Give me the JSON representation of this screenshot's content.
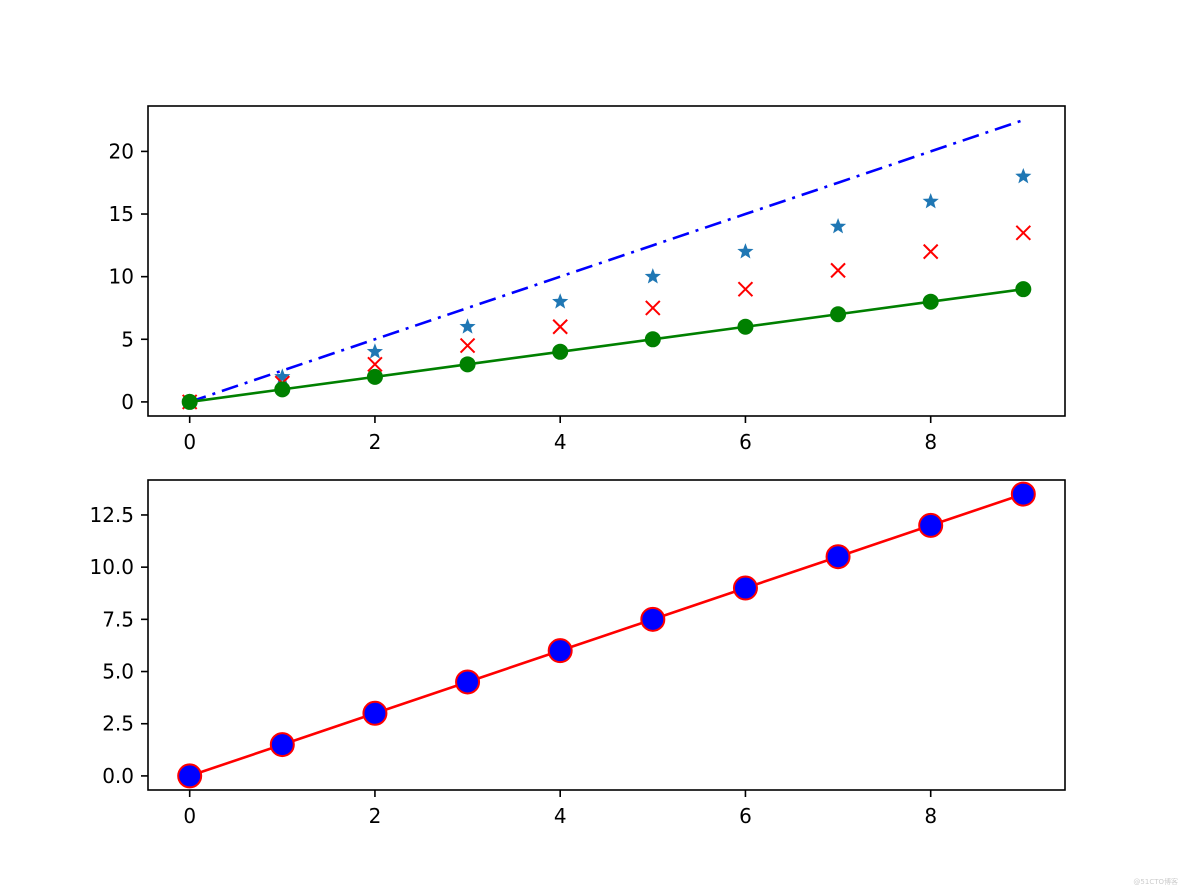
{
  "figure": {
    "background": "#ffffff",
    "watermark": "@51CTO博客"
  },
  "chart_data": [
    {
      "type": "line",
      "title": "",
      "xlabel": "",
      "ylabel": "",
      "xlim": [
        -0.45,
        9.45
      ],
      "ylim": [
        -1.125,
        23.625
      ],
      "grid": false,
      "x": [
        0,
        1,
        2,
        3,
        4,
        5,
        6,
        7,
        8,
        9
      ],
      "xticks": [
        0,
        2,
        4,
        6,
        8
      ],
      "xtick_labels": [
        "0",
        "2",
        "4",
        "6",
        "8"
      ],
      "yticks": [
        0,
        5,
        10,
        15,
        20
      ],
      "ytick_labels": [
        "0",
        "5",
        "10",
        "15",
        "20"
      ],
      "series": [
        {
          "values": [
            0,
            2.5,
            5,
            7.5,
            10,
            12.5,
            15,
            17.5,
            20,
            22.5
          ],
          "color": "#0000ff",
          "linestyle": "dashdot",
          "marker": "none"
        },
        {
          "values": [
            0,
            2,
            4,
            6,
            8,
            10,
            12,
            14,
            16,
            18
          ],
          "color": "#1f77b4",
          "linestyle": "none",
          "marker": "star"
        },
        {
          "values": [
            0,
            1.5,
            3,
            4.5,
            6,
            7.5,
            9,
            10.5,
            12,
            13.5
          ],
          "color": "#ff0000",
          "linestyle": "none",
          "marker": "x"
        },
        {
          "values": [
            0,
            1,
            2,
            3,
            4,
            5,
            6,
            7,
            8,
            9
          ],
          "color": "#008000",
          "linestyle": "solid",
          "marker": "circle"
        }
      ]
    },
    {
      "type": "line",
      "title": "",
      "xlabel": "",
      "ylabel": "",
      "xlim": [
        -0.45,
        9.45
      ],
      "ylim": [
        -0.675,
        14.175
      ],
      "grid": false,
      "x": [
        0,
        1,
        2,
        3,
        4,
        5,
        6,
        7,
        8,
        9
      ],
      "xticks": [
        0,
        2,
        4,
        6,
        8
      ],
      "xtick_labels": [
        "0",
        "2",
        "4",
        "6",
        "8"
      ],
      "yticks": [
        0,
        2.5,
        5,
        7.5,
        10,
        12.5
      ],
      "ytick_labels": [
        "0.0",
        "2.5",
        "5.0",
        "7.5",
        "10.0",
        "12.5"
      ],
      "series": [
        {
          "values": [
            0,
            1.5,
            3,
            4.5,
            6,
            7.5,
            9,
            10.5,
            12,
            13.5
          ],
          "color": "#ff0000",
          "marker_face": "#0000ff",
          "marker_edge": "#ff0000",
          "linestyle": "solid",
          "marker": "circle-large"
        }
      ]
    }
  ]
}
